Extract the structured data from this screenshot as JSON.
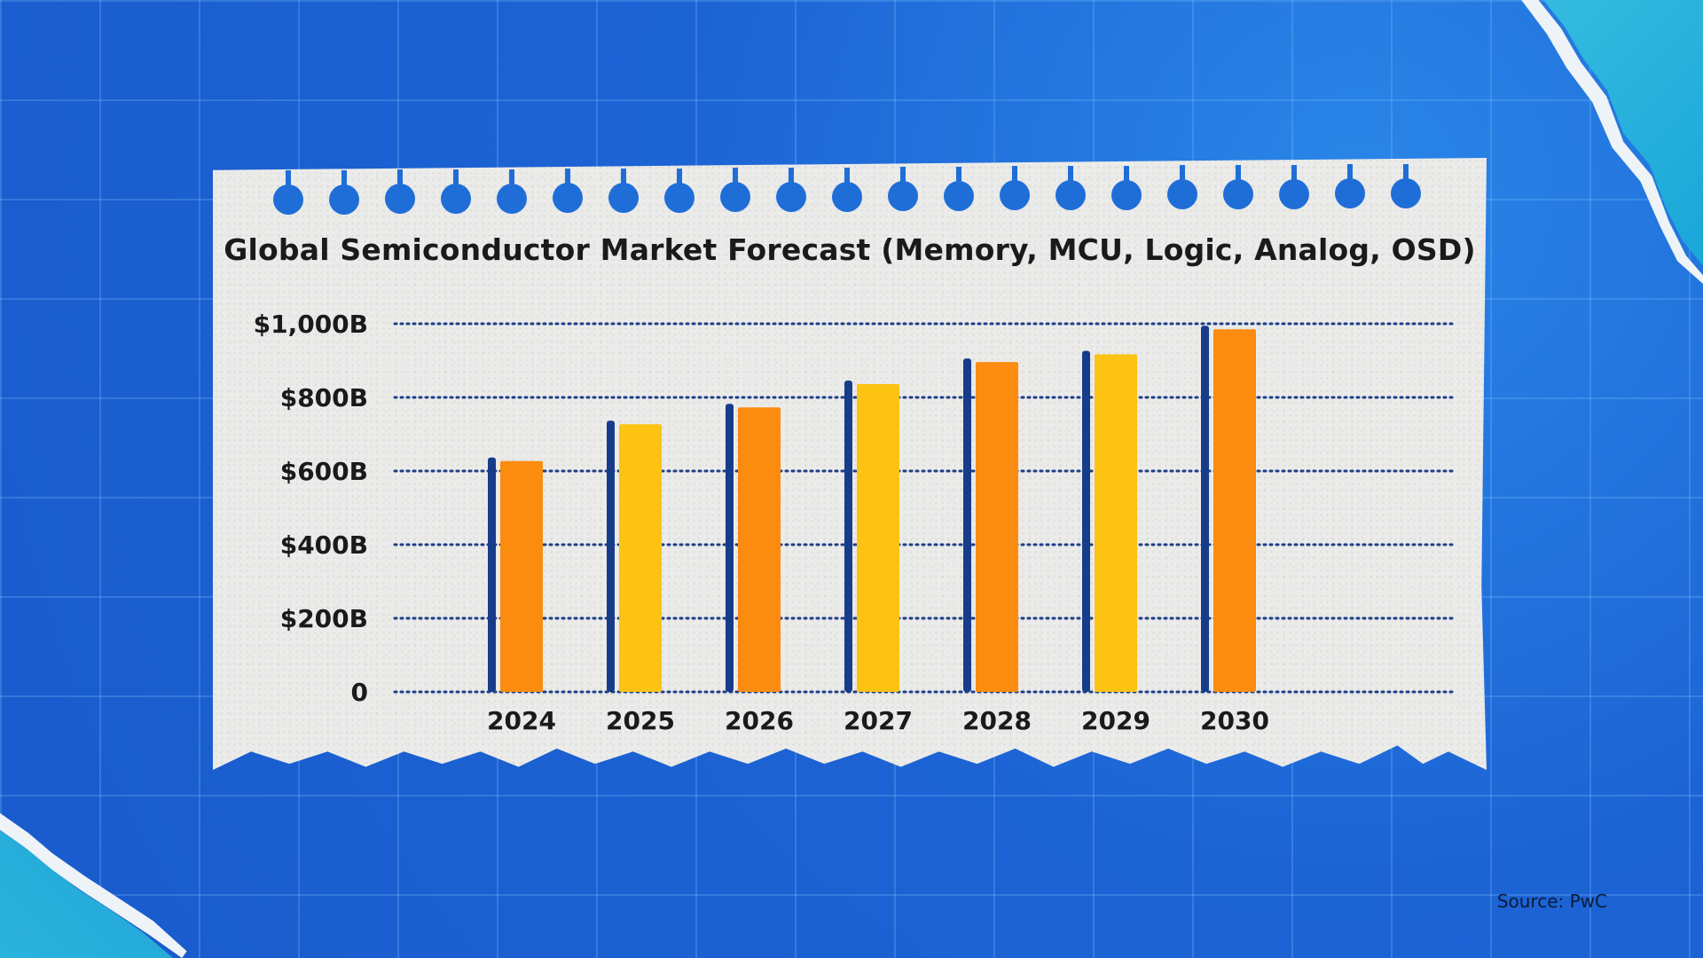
{
  "colors": {
    "background": "#1f6ed8",
    "bar_orange": "#fb8c0f",
    "bar_yellow": "#fcc313",
    "bar_shadow": "#173c8a",
    "gridline": "#1e3f86"
  },
  "chart_data": {
    "type": "bar",
    "title": "Global Semiconductor Market Forecast (Memory, MCU, Logic, Analog, OSD)",
    "xlabel": "",
    "ylabel": "",
    "categories": [
      "2024",
      "2025",
      "2026",
      "2027",
      "2028",
      "2029",
      "2030"
    ],
    "values": [
      627,
      727,
      773,
      836,
      896,
      917,
      985
    ],
    "bar_colors": [
      "orange",
      "yellow",
      "orange",
      "yellow",
      "orange",
      "yellow",
      "orange"
    ],
    "ylim": [
      0,
      1000
    ],
    "yticks": [
      0,
      200,
      400,
      600,
      800,
      1000
    ],
    "ytick_labels": [
      "0",
      "$200B",
      "$400B",
      "$600B",
      "$800B",
      "$1,000B"
    ],
    "grid": true,
    "legend": "none"
  },
  "source": "Source: PwC"
}
